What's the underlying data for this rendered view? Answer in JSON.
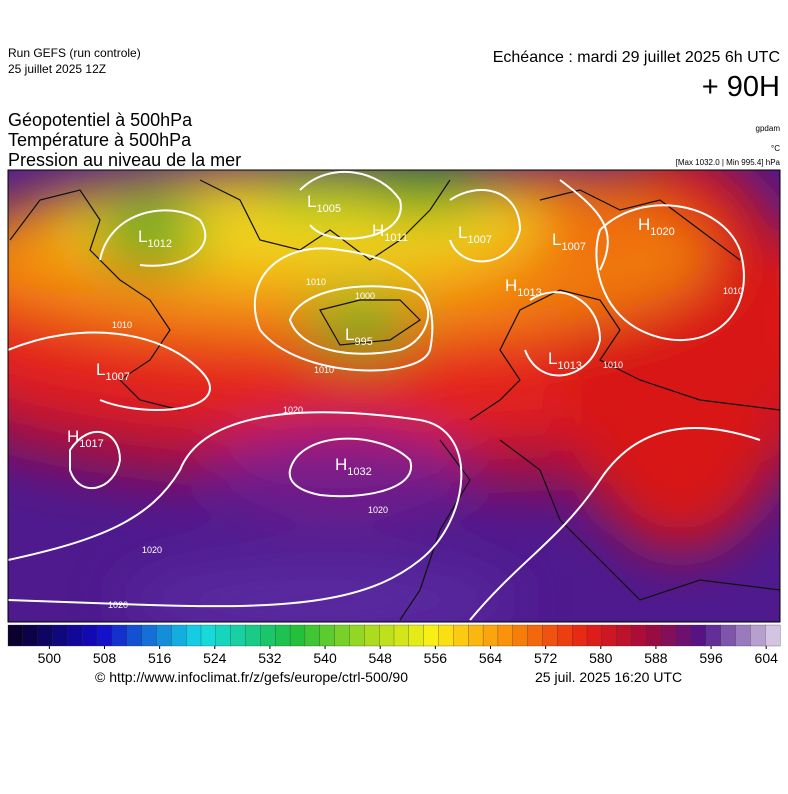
{
  "header": {
    "run": "Run GEFS (run controle)",
    "run_date": "25 juillet 2025 12Z",
    "valid_time": "Echéance : mardi 29 juillet 2025 6h UTC",
    "lead_time": "+ 90H",
    "titles": [
      "Géopotentiel à 500hPa",
      "Température à 500hPa",
      "Pression au niveau de la mer"
    ],
    "units": [
      "gpdam",
      "°C",
      "[Max 1032.0 | Min 995.4] hPa"
    ]
  },
  "map": {
    "centers": [
      {
        "type": "L",
        "value": "1012"
      },
      {
        "type": "L",
        "value": "1005"
      },
      {
        "type": "H",
        "value": "1011"
      },
      {
        "type": "L",
        "value": "1007"
      },
      {
        "type": "L",
        "value": "1007"
      },
      {
        "type": "H",
        "value": "1020"
      },
      {
        "type": "H",
        "value": "1013"
      },
      {
        "type": "L",
        "value": "995"
      },
      {
        "type": "L",
        "value": "1013"
      },
      {
        "type": "L",
        "value": "1007"
      },
      {
        "type": "H",
        "value": "1017"
      },
      {
        "type": "H",
        "value": "1032"
      }
    ],
    "isobar_labels": [
      "1000",
      "1010",
      "1010",
      "1020",
      "1020",
      "1020",
      "1020",
      "1010",
      "1010",
      "1010"
    ]
  },
  "colorbar": {
    "range": [
      494,
      606
    ],
    "ticks": [
      500,
      508,
      516,
      524,
      532,
      540,
      548,
      556,
      564,
      572,
      580,
      588,
      596,
      604
    ]
  },
  "footer": {
    "source": "© http://www.infoclimat.fr/z/gefs/europe/ctrl-500/90",
    "generated": "25 juil. 2025 16:20 UTC"
  }
}
